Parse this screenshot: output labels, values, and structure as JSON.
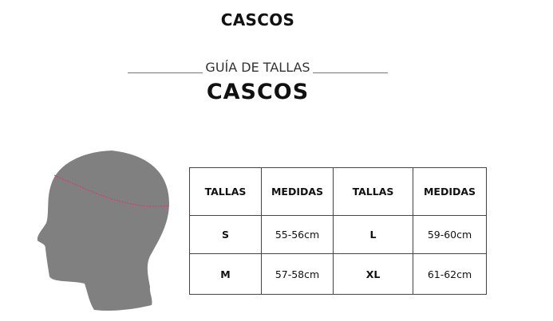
{
  "header": {
    "title": "CASCOS"
  },
  "guide": {
    "label": "GUÍA DE TALLAS",
    "subtitle": "CASCOS"
  },
  "colors": {
    "head": "#808080",
    "measure_line": "#d0406a"
  },
  "table": {
    "headers": [
      "TALLAS",
      "MEDIDAS",
      "TALLAS",
      "MEDIDAS"
    ],
    "rows": [
      [
        "S",
        "55-56cm",
        "L",
        "59-60cm"
      ],
      [
        "M",
        "57-58cm",
        "XL",
        "61-62cm"
      ]
    ]
  }
}
